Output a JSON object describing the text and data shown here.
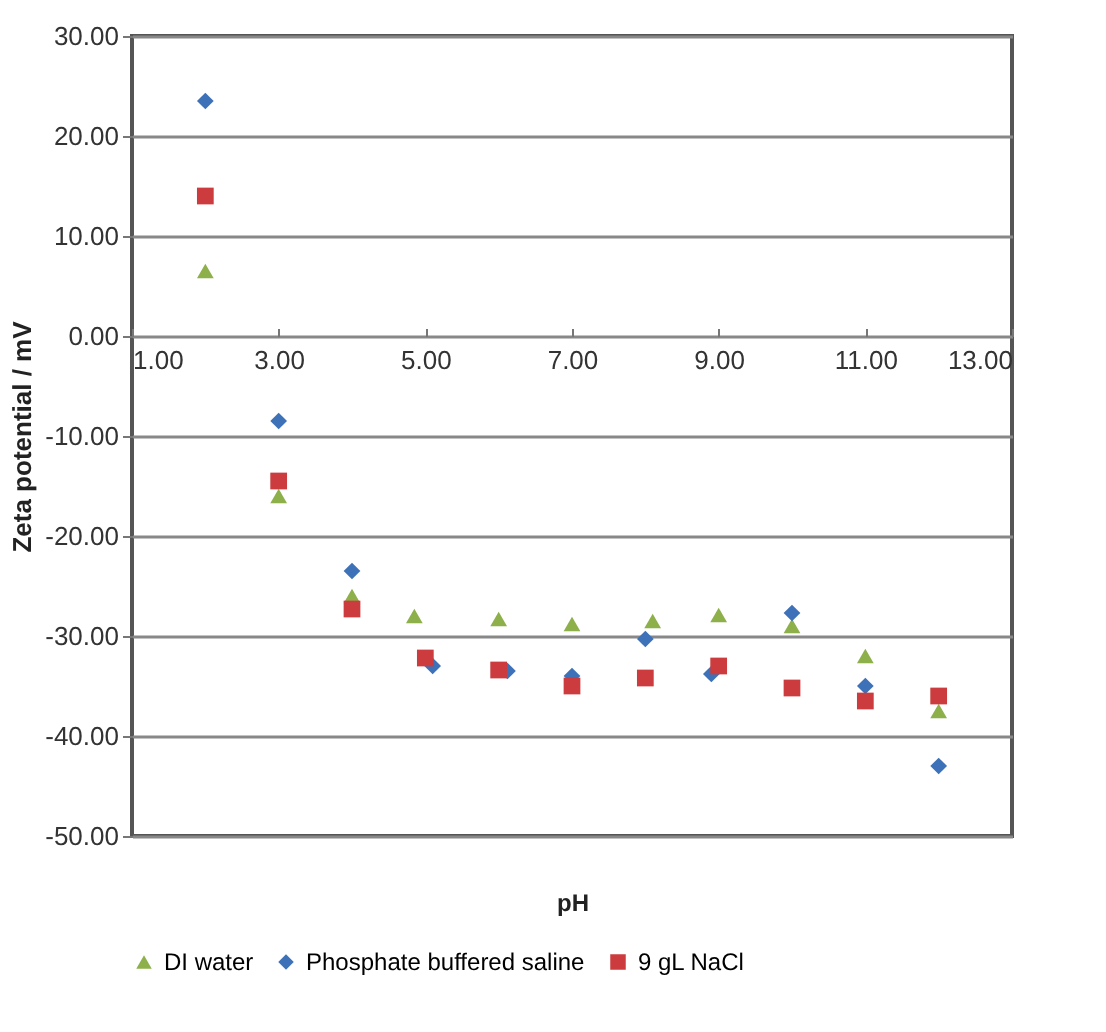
{
  "chart_data": {
    "type": "scatter",
    "xlabel": "pH",
    "ylabel": "Zeta potential / mV",
    "xlim": [
      1,
      13
    ],
    "xticks": [
      {
        "value": 1,
        "label": "1.00"
      },
      {
        "value": 3,
        "label": "3.00"
      },
      {
        "value": 5,
        "label": "5.00"
      },
      {
        "value": 7,
        "label": "7.00"
      },
      {
        "value": 9,
        "label": "9.00"
      },
      {
        "value": 11,
        "label": "11.00"
      },
      {
        "value": 13,
        "label": "13.00"
      }
    ],
    "ylim": [
      -50,
      30
    ],
    "yticks": [
      {
        "value": -50,
        "label": "-50.00"
      },
      {
        "value": -40,
        "label": "-40.00"
      },
      {
        "value": -30,
        "label": "-30.00"
      },
      {
        "value": -20,
        "label": "-20.00"
      },
      {
        "value": -10,
        "label": "-10.00"
      },
      {
        "value": 0,
        "label": "0.00"
      },
      {
        "value": 10,
        "label": "10.00"
      },
      {
        "value": 20,
        "label": "20.00"
      },
      {
        "value": 30,
        "label": "30.00"
      }
    ],
    "grid": "y",
    "legend": "bottom",
    "series": [
      {
        "name": "DI water",
        "color": "#8db04a",
        "marker": "triangle",
        "x": [
          2,
          3,
          4,
          4.85,
          6,
          7,
          8.1,
          9,
          10,
          11,
          12
        ],
        "values": [
          6.5,
          -16,
          -26,
          -28,
          -28.3,
          -28.8,
          -28.5,
          -27.9,
          -29,
          -32,
          -37.5
        ]
      },
      {
        "name": "Phosphate buffered saline",
        "color": "#3e72b8",
        "marker": "diamond",
        "x": [
          2,
          3,
          4,
          5.1,
          6.12,
          7,
          8,
          8.9,
          10,
          11,
          12
        ],
        "values": [
          23.5,
          -8.5,
          -23.5,
          -33,
          -33.5,
          -34,
          -30.3,
          -33.8,
          -27.7,
          -35,
          -43
        ]
      },
      {
        "name": "9 gL NaCl",
        "color": "#cc3b3d",
        "marker": "square",
        "x": [
          2,
          3,
          4,
          5,
          6,
          7,
          8,
          9,
          10,
          11,
          12
        ],
        "values": [
          14,
          -14.5,
          -27.3,
          -32.2,
          -33.4,
          -35,
          -34.2,
          -33,
          -35.2,
          -36.5,
          -36
        ]
      }
    ]
  }
}
